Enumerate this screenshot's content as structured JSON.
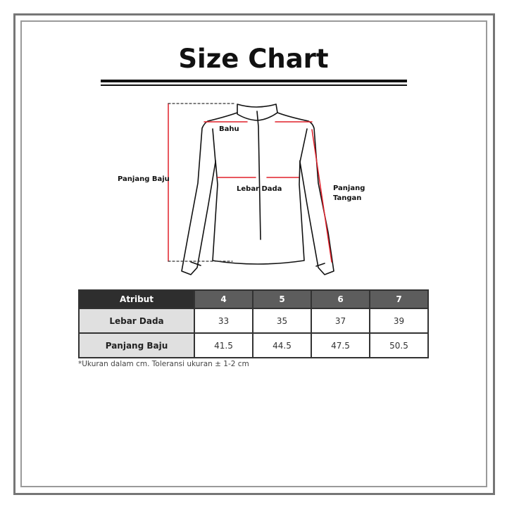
{
  "title": "Size Chart",
  "diagram": {
    "labels": {
      "bahu": "Bahu",
      "panjang_baju": "Panjang Baju",
      "lebar_dada": "Lebar Dada",
      "panjang_tangan_1": "Panjang",
      "panjang_tangan_2": "Tangan"
    },
    "measure_color": "#e0202a"
  },
  "table": {
    "headers": [
      "Atribut",
      "4",
      "5",
      "6",
      "7"
    ],
    "rows": [
      {
        "label": "Lebar Dada",
        "values": [
          "33",
          "35",
          "37",
          "39"
        ]
      },
      {
        "label": "Panjang Baju",
        "values": [
          "41.5",
          "44.5",
          "47.5",
          "50.5"
        ]
      }
    ]
  },
  "note": "*Ukuran dalam cm. Toleransi ukuran ± 1-2 cm"
}
